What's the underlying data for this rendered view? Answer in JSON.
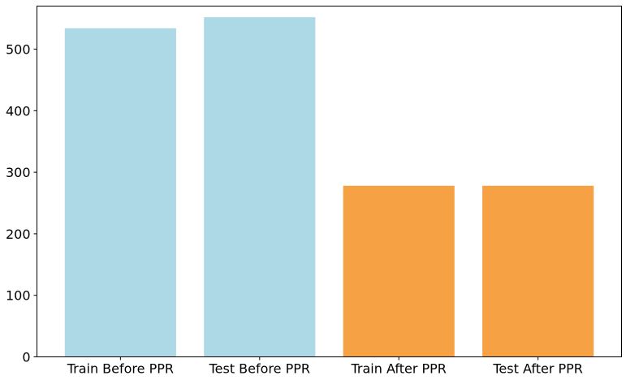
{
  "chart_data": {
    "type": "bar",
    "title": "",
    "xlabel": "",
    "ylabel": "",
    "categories": [
      "Train Before PPR",
      "Test Before PPR",
      "Train After PPR",
      "Test After PPR"
    ],
    "values": [
      534,
      552,
      278,
      278
    ],
    "bar_colors": [
      "#add8e6",
      "#add8e6",
      "#f7a145",
      "#f7a145"
    ],
    "ylim": [
      0,
      570
    ],
    "yticks": [
      0,
      100,
      200,
      300,
      400,
      500
    ],
    "grid": false,
    "legend": "none"
  }
}
